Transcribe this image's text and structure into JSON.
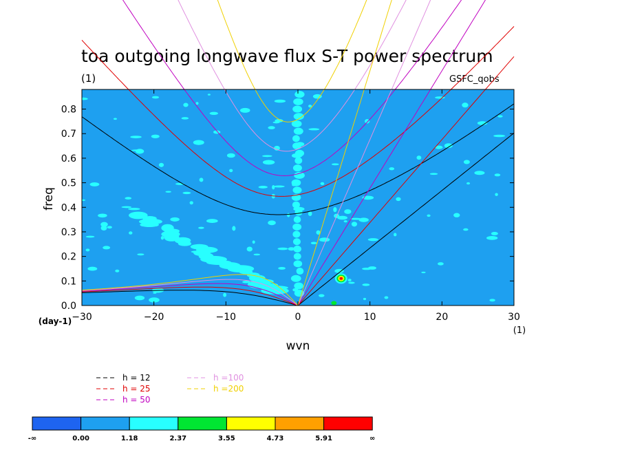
{
  "chart_data": {
    "type": "heatmap",
    "title": "toa outgoing longwave flux S-T power spectrum",
    "subtitle": "(1)",
    "dataset_label": "GSFC_qobs",
    "xlabel": "wvn",
    "xunit": "(1)",
    "ylabel": "freq",
    "yunit": "(day-1)",
    "xlim": [
      -30,
      30
    ],
    "ylim": [
      0,
      0.88
    ],
    "xticks": [
      "-30",
      "-20",
      "-10",
      "0",
      "10",
      "20",
      "30"
    ],
    "yticks": [
      "0.0",
      "0.1",
      "0.2",
      "0.3",
      "0.4",
      "0.5",
      "0.6",
      "0.7",
      "0.8"
    ],
    "grid": false,
    "dispersion_curves": [
      {
        "name": "h = 12",
        "equivalent_depth": 12,
        "color": "#000000"
      },
      {
        "name": "h = 25",
        "equivalent_depth": 25,
        "color": "#e00000"
      },
      {
        "name": "h = 50",
        "equivalent_depth": 50,
        "color": "#c000c0"
      },
      {
        "name": "h =100",
        "equivalent_depth": 100,
        "color": "#e090e0"
      },
      {
        "name": "h =200",
        "equivalent_depth": 200,
        "color": "#f0d000"
      }
    ],
    "colorbar": {
      "labels": [
        "-∞",
        "0.00",
        "1.18",
        "2.37",
        "3.55",
        "4.73",
        "5.91",
        "∞"
      ],
      "colors": [
        "#1e64f0",
        "#1ea0f0",
        "#28ffff",
        "#00e632",
        "#ffff00",
        "#ffa000",
        "#ff0000"
      ]
    },
    "features": [
      {
        "label": "peak",
        "x": 6,
        "y": 0.11,
        "level": "max"
      }
    ]
  }
}
